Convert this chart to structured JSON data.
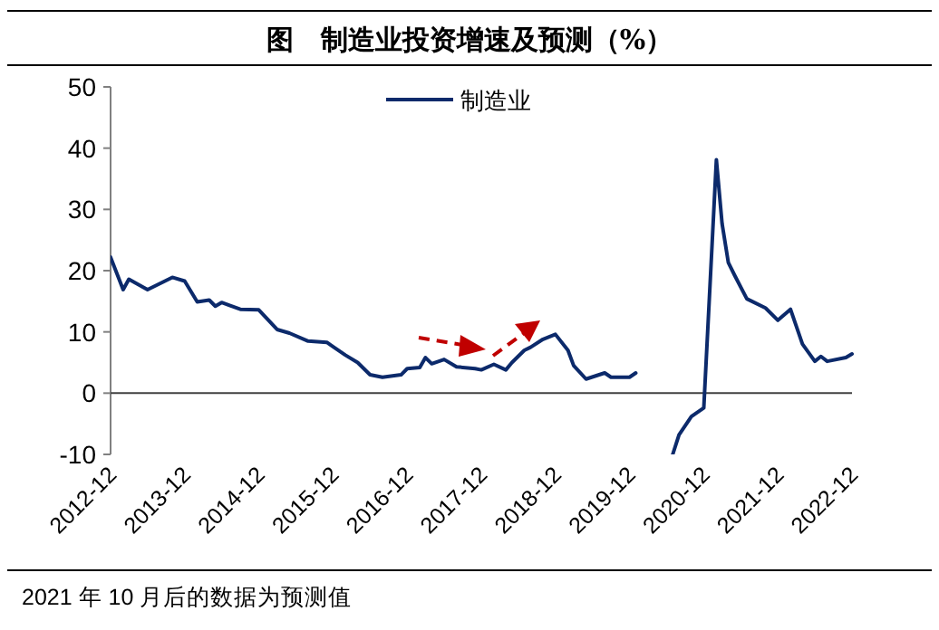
{
  "chart_data": {
    "type": "line",
    "title": "图　制造业投资增速及预测（%）",
    "annotations": [
      "2021 年 10 月后的数据为预测值"
    ],
    "x": [
      "2012-12",
      "2013-02",
      "2013-03",
      "2013-06",
      "2013-10",
      "2013-12",
      "2014-02",
      "2014-04",
      "2014-05",
      "2014-06",
      "2014-09",
      "2014-12",
      "2015-03",
      "2015-05",
      "2015-08",
      "2015-11",
      "2015-12",
      "2016-02",
      "2016-04",
      "2016-06",
      "2016-08",
      "2016-11",
      "2016-12",
      "2017-02",
      "2017-03",
      "2017-04",
      "2017-06",
      "2017-08",
      "2017-11",
      "2017-12",
      "2018-02",
      "2018-04",
      "2018-05",
      "2018-07",
      "2018-08",
      "2018-10",
      "2018-12",
      "2019-02",
      "2019-03",
      "2019-05",
      "2019-08",
      "2019-09",
      "2019-12",
      "2020-01",
      "2020-02",
      "2020-03",
      "2020-04",
      "2020-05",
      "2020-06",
      "2020-07",
      "2020-08",
      "2020-10",
      "2020-12",
      "2021-02",
      "2021-03",
      "2021-04",
      "2021-05",
      "2021-07",
      "2021-10",
      "2021-12",
      "2022-02",
      "2022-04",
      "2022-06",
      "2022-07",
      "2022-08",
      "2022-11",
      "2022-12"
    ],
    "series": [
      {
        "name": "制造业",
        "color": "#0c2a6b",
        "values": [
          22.2,
          16.9,
          18.6,
          16.9,
          18.9,
          18.3,
          14.9,
          15.2,
          14.2,
          14.8,
          13.7,
          13.6,
          10.4,
          9.8,
          8.5,
          8.3,
          7.6,
          6.2,
          5.0,
          3.0,
          2.6,
          3.0,
          4.0,
          4.2,
          5.8,
          4.8,
          5.5,
          4.3,
          4.0,
          3.8,
          4.7,
          3.8,
          5.0,
          7.0,
          7.5,
          8.8,
          9.6,
          7.0,
          4.5,
          2.3,
          3.3,
          2.6,
          2.6,
          3.3,
          null,
          null,
          null,
          null,
          null,
          -10,
          -6.8,
          -3.8,
          -2.4,
          38.1,
          27.7,
          21.3,
          19.3,
          15.4,
          13.9,
          11.9,
          13.7,
          8.0,
          5.2,
          6.0,
          5.2,
          5.8,
          6.4
        ]
      }
    ],
    "xlim": [
      "2012-12",
      "2022-12"
    ],
    "xticks": [
      {
        "value": "2012-12",
        "label": "2012-12"
      },
      {
        "value": "2013-12",
        "label": "2013-12"
      },
      {
        "value": "2014-12",
        "label": "2014-12"
      },
      {
        "value": "2015-12",
        "label": "2015-12"
      },
      {
        "value": "2016-12",
        "label": "2016-12"
      },
      {
        "value": "2017-12",
        "label": "2017-12"
      },
      {
        "value": "2018-12",
        "label": "2018-12"
      },
      {
        "value": "2019-12",
        "label": "2019-12"
      },
      {
        "value": "2020-12",
        "label": "2020-12"
      },
      {
        "value": "2021-12",
        "label": "2021-12"
      },
      {
        "value": "2022-12",
        "label": "2022-12"
      }
    ],
    "ylim": [
      -10,
      50
    ],
    "yticks": [
      -10,
      0,
      10,
      20,
      30,
      40,
      50
    ],
    "legend": "top"
  }
}
